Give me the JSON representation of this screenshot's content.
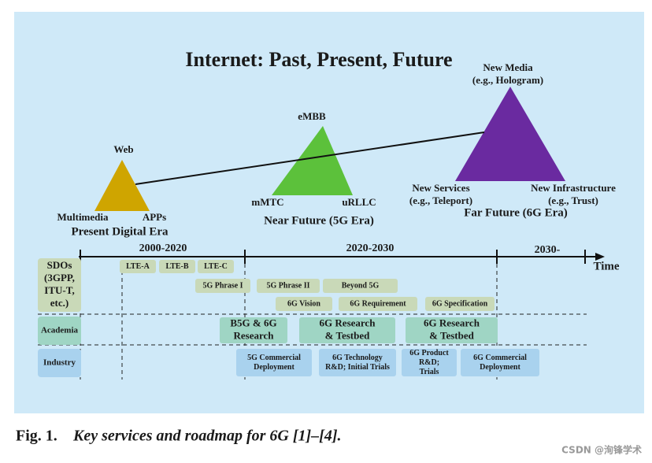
{
  "title": "Internet: Past, Present, Future",
  "eras": [
    {
      "top": [
        "Web"
      ],
      "left": [
        "Multimedia"
      ],
      "right": [
        "APPs"
      ],
      "name": "Present Digital Era"
    },
    {
      "top": [
        "eMBB"
      ],
      "left": [
        "mMTC"
      ],
      "right": [
        "uRLLC"
      ],
      "name": "Near Future (5G Era)"
    },
    {
      "top": [
        "New Media",
        "(e.g., Hologram)"
      ],
      "left": [
        "New Services",
        "(e.g., Teleport)"
      ],
      "right": [
        "New Infrastructure",
        "(e.g., Trust)"
      ],
      "name": "Far Future (6G Era)"
    }
  ],
  "timeline": {
    "periods": [
      "2000-2020",
      "2020-2030",
      "2030-"
    ],
    "axis_label": "Time"
  },
  "rows": [
    {
      "label": [
        "SDOs",
        "(3GPP,",
        "ITU-T,",
        "etc.)"
      ],
      "boxes": [
        [
          "LTE-A"
        ],
        [
          "LTE-B"
        ],
        [
          "LTE-C"
        ],
        [
          "5G Phrase I"
        ],
        [
          "5G Phrase II"
        ],
        [
          "Beyond 5G"
        ],
        [
          "6G Vision"
        ],
        [
          "6G Requirement"
        ],
        [
          "6G Specification"
        ]
      ]
    },
    {
      "label": [
        "Academia"
      ],
      "boxes": [
        [
          "B5G & 6G",
          "Research"
        ],
        [
          "6G Research",
          "& Testbed"
        ],
        [
          "6G Research",
          "& Testbed"
        ]
      ]
    },
    {
      "label": [
        "Industry"
      ],
      "boxes": [
        [
          "5G Commercial",
          "Deployment"
        ],
        [
          "6G Technology",
          "R&D; Initial Trials"
        ],
        [
          "6G Product",
          "R&D;",
          "Trials"
        ],
        [
          "6G Commercial",
          "Deployment"
        ]
      ]
    }
  ],
  "caption": {
    "label": "Fig. 1.",
    "text": "Key services and roadmap for 6G [1]–[4]."
  },
  "watermark": "CSDN @洵锋学术"
}
